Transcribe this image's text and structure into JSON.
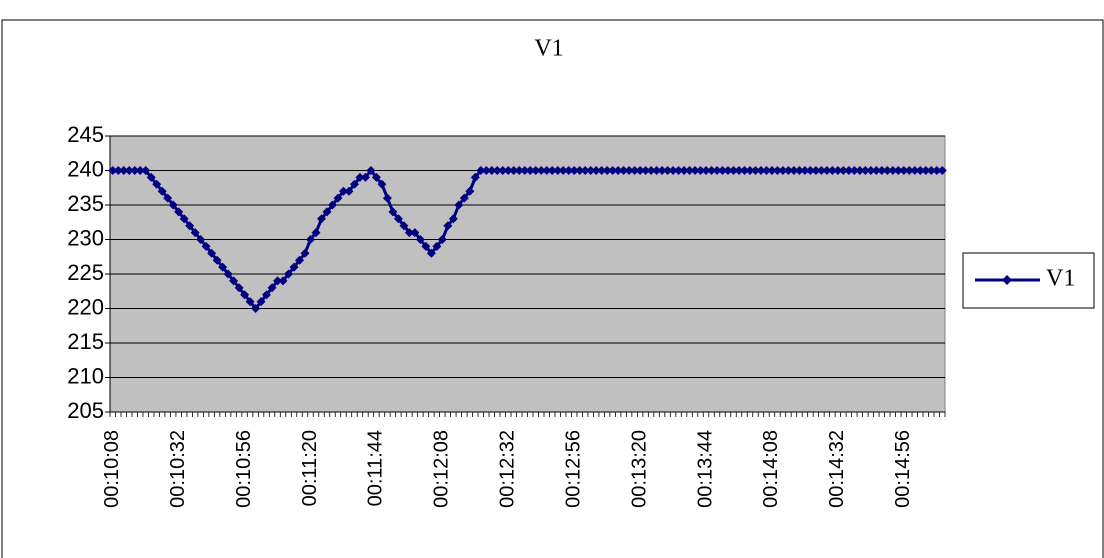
{
  "chart_data": {
    "type": "line",
    "title": "V1",
    "categories": [
      "00:10:08",
      null,
      null,
      null,
      null,
      null,
      null,
      null,
      null,
      null,
      null,
      null,
      "00:10:32",
      null,
      null,
      null,
      null,
      null,
      null,
      null,
      null,
      null,
      null,
      null,
      "00:10:56",
      null,
      null,
      null,
      null,
      null,
      null,
      null,
      null,
      null,
      null,
      null,
      "00:11:20",
      null,
      null,
      null,
      null,
      null,
      null,
      null,
      null,
      null,
      null,
      null,
      "00:11:44",
      null,
      null,
      null,
      null,
      null,
      null,
      null,
      null,
      null,
      null,
      null,
      "00:12:08",
      null,
      null,
      null,
      null,
      null,
      null,
      null,
      null,
      null,
      null,
      null,
      "00:12:32",
      null,
      null,
      null,
      null,
      null,
      null,
      null,
      null,
      null,
      null,
      null,
      "00:12:56",
      null,
      null,
      null,
      null,
      null,
      null,
      null,
      null,
      null,
      null,
      null,
      "00:13:20",
      null,
      null,
      null,
      null,
      null,
      null,
      null,
      null,
      null,
      null,
      null,
      "00:13:44",
      null,
      null,
      null,
      null,
      null,
      null,
      null,
      null,
      null,
      null,
      null,
      "00:14:08",
      null,
      null,
      null,
      null,
      null,
      null,
      null,
      null,
      null,
      null,
      null,
      "00:14:32",
      null,
      null,
      null,
      null,
      null,
      null,
      null,
      null,
      null,
      null,
      null,
      "00:14:56",
      null,
      null,
      null,
      null,
      null,
      null,
      null
    ],
    "series": [
      {
        "name": "V1",
        "color": "#000080",
        "values": [
          240,
          240,
          240,
          240,
          240,
          240,
          240,
          239,
          238,
          237,
          236,
          235,
          234,
          233,
          232,
          231,
          230,
          229,
          228,
          227,
          226,
          225,
          224,
          223,
          222,
          221,
          220,
          221,
          222,
          223,
          224,
          224,
          225,
          226,
          227,
          228,
          230,
          231,
          233,
          234,
          235,
          236,
          237,
          237,
          238,
          239,
          239,
          240,
          239,
          238,
          236,
          234,
          233,
          232,
          231,
          231,
          230,
          229,
          228,
          229,
          230,
          232,
          233,
          235,
          236,
          237,
          239,
          240,
          240,
          240,
          240,
          240,
          240,
          240,
          240,
          240,
          240,
          240,
          240,
          240,
          240,
          240,
          240,
          240,
          240,
          240,
          240,
          240,
          240,
          240,
          240,
          240,
          240,
          240,
          240,
          240,
          240,
          240,
          240,
          240,
          240,
          240,
          240,
          240,
          240,
          240,
          240,
          240,
          240,
          240,
          240,
          240,
          240,
          240,
          240,
          240,
          240,
          240,
          240,
          240,
          240,
          240,
          240,
          240,
          240,
          240,
          240,
          240,
          240,
          240,
          240,
          240,
          240,
          240,
          240,
          240,
          240,
          240,
          240,
          240,
          240,
          240,
          240,
          240,
          240,
          240,
          240,
          240,
          240,
          240,
          240,
          240
        ]
      }
    ],
    "ylim": [
      205,
      245
    ],
    "yticks": [
      205,
      210,
      215,
      220,
      225,
      230,
      235,
      240,
      245
    ],
    "grid": true,
    "legend": "right",
    "plot_background": "#c0c0c0"
  }
}
